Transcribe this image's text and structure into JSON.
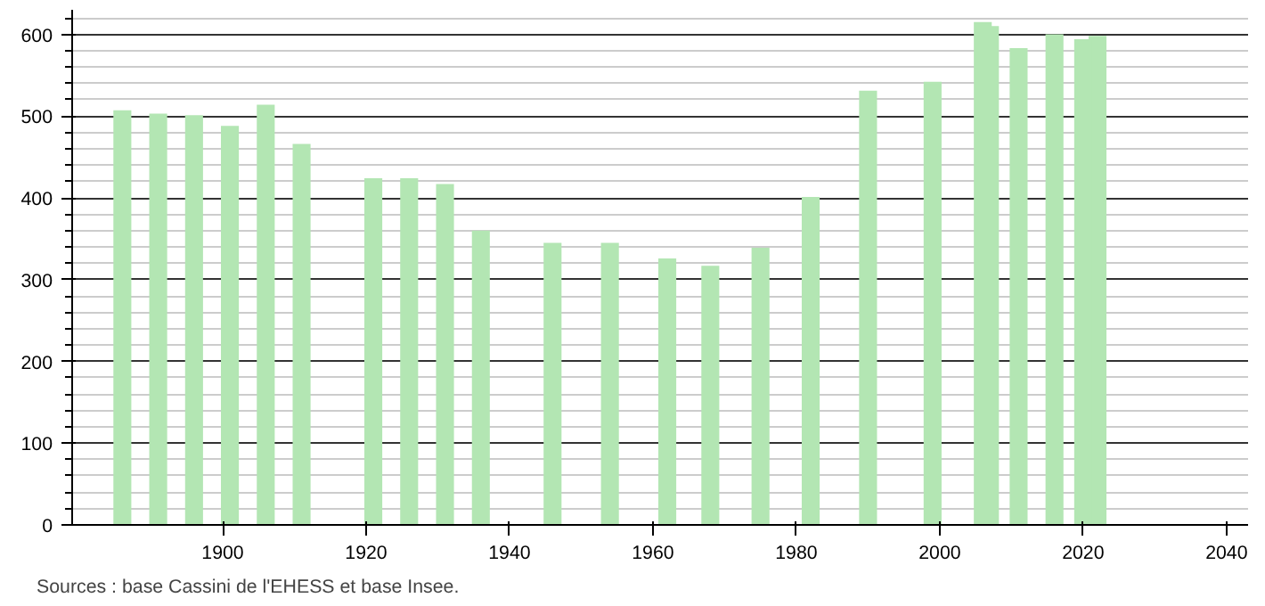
{
  "chart_data": {
    "type": "bar",
    "x": [
      1886,
      1891,
      1896,
      1901,
      1906,
      1911,
      1921,
      1926,
      1931,
      1936,
      1946,
      1954,
      1962,
      1968,
      1975,
      1982,
      1990,
      1999,
      2006,
      2007,
      2011,
      2016,
      2020,
      2022
    ],
    "values": [
      507,
      503,
      501,
      488,
      514,
      466,
      424,
      424,
      417,
      360,
      345,
      345,
      326,
      317,
      339,
      401,
      531,
      542,
      615,
      610,
      583,
      600,
      594,
      598
    ],
    "color": "#b3e6b3",
    "xlim": [
      1879,
      2043
    ],
    "xticks": [
      1900,
      1920,
      1940,
      1960,
      1980,
      2000,
      2020,
      2040
    ],
    "ylim": [
      0,
      630
    ],
    "yticks": [
      0,
      100,
      200,
      300,
      400,
      500,
      600
    ],
    "grid": "y",
    "annotations": [
      "Sources : base Cassini de l'EHESS et base Insee."
    ]
  }
}
